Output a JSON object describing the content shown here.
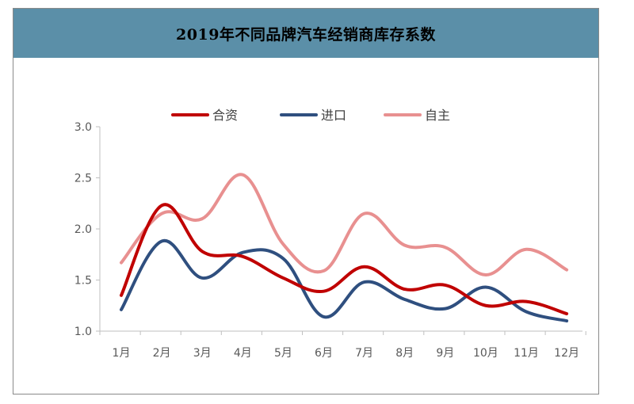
{
  "chart_data": {
    "type": "line",
    "title": "2019年不同品牌汽车经销商库存系数",
    "xlabel": "",
    "ylabel": "",
    "categories": [
      "1月",
      "2月",
      "3月",
      "4月",
      "5月",
      "6月",
      "7月",
      "8月",
      "9月",
      "10月",
      "11月",
      "12月"
    ],
    "ylim": [
      1.0,
      3.0
    ],
    "yticks": [
      "1.0",
      "1.5",
      "2.0",
      "2.5",
      "3.0"
    ],
    "legend_position": "top",
    "grid": false,
    "series": [
      {
        "name": "合资",
        "color": "#c00000",
        "values": [
          1.35,
          2.23,
          1.78,
          1.73,
          1.52,
          1.39,
          1.63,
          1.41,
          1.45,
          1.25,
          1.29,
          1.17
        ]
      },
      {
        "name": "进口",
        "color": "#2f4f7f",
        "values": [
          1.21,
          1.88,
          1.52,
          1.77,
          1.71,
          1.14,
          1.48,
          1.31,
          1.22,
          1.43,
          1.19,
          1.1
        ]
      },
      {
        "name": "自主",
        "color": "#e89090",
        "values": [
          1.67,
          2.15,
          2.1,
          2.53,
          1.85,
          1.59,
          2.15,
          1.84,
          1.82,
          1.55,
          1.8,
          1.6
        ]
      }
    ]
  }
}
